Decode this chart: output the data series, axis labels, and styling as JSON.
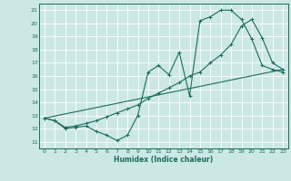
{
  "xlabel": "Humidex (Indice chaleur)",
  "xlim": [
    -0.5,
    23.5
  ],
  "ylim": [
    10.5,
    21.5
  ],
  "yticks": [
    11,
    12,
    13,
    14,
    15,
    16,
    17,
    18,
    19,
    20,
    21
  ],
  "xticks": [
    0,
    1,
    2,
    3,
    4,
    5,
    6,
    7,
    8,
    9,
    10,
    11,
    12,
    13,
    14,
    15,
    16,
    17,
    18,
    19,
    20,
    21,
    22,
    23
  ],
  "bg_color": "#cce8e4",
  "line_color": "#1a6b5e",
  "grid_color": "#ffffff",
  "line1_x": [
    0,
    1,
    2,
    3,
    4,
    5,
    6,
    7,
    8,
    9,
    10,
    11,
    12,
    13,
    14,
    15,
    16,
    17,
    18,
    19,
    20,
    21,
    22,
    23
  ],
  "line1_y": [
    12.8,
    12.6,
    12.0,
    12.1,
    12.2,
    11.8,
    11.5,
    11.1,
    11.5,
    13.0,
    16.3,
    16.8,
    16.1,
    17.8,
    14.5,
    20.2,
    20.5,
    21.0,
    21.0,
    20.3,
    18.8,
    16.8,
    16.5,
    16.3
  ],
  "line2_x": [
    0,
    23
  ],
  "line2_y": [
    12.8,
    16.5
  ],
  "line3_x": [
    0,
    1,
    2,
    3,
    4,
    5,
    6,
    7,
    8,
    9,
    10,
    11,
    12,
    13,
    14,
    15,
    16,
    17,
    18,
    19,
    20,
    21,
    22,
    23
  ],
  "line3_y": [
    12.8,
    12.6,
    12.1,
    12.2,
    12.4,
    12.6,
    12.9,
    13.2,
    13.5,
    13.8,
    14.3,
    14.7,
    15.1,
    15.5,
    16.0,
    16.3,
    17.0,
    17.6,
    18.4,
    19.8,
    20.3,
    18.9,
    17.0,
    16.5
  ],
  "marker": "+"
}
